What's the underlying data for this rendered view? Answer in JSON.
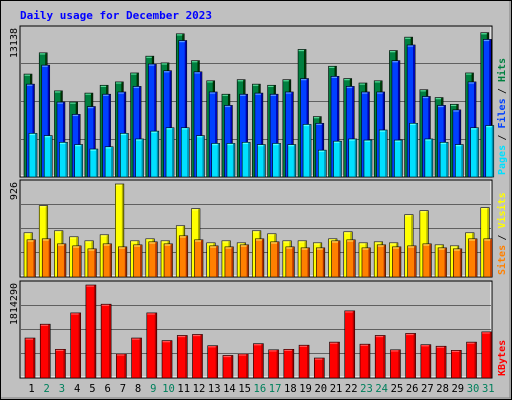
{
  "chart_data": [
    {
      "type": "bar",
      "title": "Daily usage for December 2023",
      "top_label": "13138",
      "side_labels": [
        "Pages",
        "Files",
        "Hits"
      ],
      "categories": [
        "1",
        "2",
        "3",
        "4",
        "5",
        "6",
        "7",
        "8",
        "9",
        "10",
        "11",
        "12",
        "13",
        "14",
        "15",
        "16",
        "17",
        "18",
        "19",
        "20",
        "21",
        "22",
        "23",
        "24",
        "25",
        "26",
        "27",
        "28",
        "29",
        "30",
        "31"
      ],
      "weekend_days": [
        "2",
        "3",
        "9",
        "10",
        "16",
        "17",
        "23",
        "24",
        "30",
        "31"
      ],
      "ylim": [
        0,
        13138
      ],
      "series": [
        {
          "name": "Hits",
          "values": [
            9200,
            11100,
            7700,
            6700,
            7500,
            8200,
            8500,
            9300,
            10800,
            10200,
            12800,
            10400,
            8600,
            7400,
            8700,
            8300,
            8200,
            8700,
            11400,
            5400,
            9900,
            8800,
            8400,
            8600,
            11300,
            12500,
            7800,
            7100,
            6500,
            9300,
            12900
          ]
        },
        {
          "name": "Files",
          "values": [
            8300,
            10000,
            6700,
            5600,
            6300,
            7400,
            7600,
            8100,
            10100,
            9500,
            12200,
            9400,
            7600,
            6400,
            7400,
            7500,
            7400,
            7600,
            8800,
            4800,
            9000,
            8100,
            7600,
            7600,
            10400,
            11800,
            7200,
            6400,
            6000,
            8500,
            12300
          ]
        },
        {
          "name": "Pages",
          "values": [
            3900,
            3700,
            3100,
            2900,
            2500,
            2700,
            3900,
            3400,
            4100,
            4400,
            4400,
            3700,
            3000,
            3000,
            3100,
            2900,
            3000,
            2900,
            4700,
            2400,
            3200,
            3400,
            3300,
            4200,
            3300,
            4800,
            3400,
            3100,
            2900,
            4400,
            4600
          ]
        }
      ]
    },
    {
      "type": "bar",
      "top_label": "926",
      "side_labels": [
        "Sites",
        "Visits"
      ],
      "categories": [
        "1",
        "2",
        "3",
        "4",
        "5",
        "6",
        "7",
        "8",
        "9",
        "10",
        "11",
        "12",
        "13",
        "14",
        "15",
        "16",
        "17",
        "18",
        "19",
        "20",
        "21",
        "22",
        "23",
        "24",
        "25",
        "26",
        "27",
        "28",
        "29",
        "30",
        "31"
      ],
      "ylim": [
        0,
        926
      ],
      "series": [
        {
          "name": "Visits",
          "values": [
            440,
            710,
            460,
            400,
            360,
            420,
            926,
            360,
            380,
            360,
            510,
            680,
            340,
            360,
            340,
            460,
            430,
            360,
            360,
            340,
            380,
            450,
            340,
            350,
            340,
            620,
            660,
            320,
            310,
            440,
            690
          ]
        },
        {
          "name": "Sites",
          "values": [
            370,
            380,
            330,
            310,
            280,
            330,
            300,
            320,
            350,
            330,
            410,
            370,
            310,
            300,
            320,
            380,
            350,
            300,
            290,
            290,
            360,
            370,
            290,
            320,
            300,
            310,
            330,
            290,
            280,
            380,
            380
          ]
        }
      ]
    },
    {
      "type": "bar",
      "top_label": "1814290",
      "side_labels": [
        "KBytes"
      ],
      "categories": [
        "1",
        "2",
        "3",
        "4",
        "5",
        "6",
        "7",
        "8",
        "9",
        "10",
        "11",
        "12",
        "13",
        "14",
        "15",
        "16",
        "17",
        "18",
        "19",
        "20",
        "21",
        "22",
        "23",
        "24",
        "25",
        "26",
        "27",
        "28",
        "29",
        "30",
        "31"
      ],
      "ylim": [
        0,
        1814290
      ],
      "series": [
        {
          "name": "KBytes",
          "values": [
            780000,
            1050000,
            560000,
            1270000,
            1814290,
            1440000,
            470000,
            780000,
            1270000,
            730000,
            830000,
            850000,
            630000,
            440000,
            470000,
            670000,
            550000,
            560000,
            640000,
            390000,
            700000,
            1310000,
            660000,
            830000,
            550000,
            870000,
            650000,
            620000,
            540000,
            700000,
            900000
          ]
        }
      ]
    }
  ],
  "colors": {
    "hits": "#008040",
    "files": "#0040ff",
    "pages": "#00e0ff",
    "visits": "#ffff00",
    "sites": "#ff8000",
    "kbytes": "#ff0000",
    "title": "#0000ff",
    "weekday_label": "#000000",
    "weekend_label": "#00805c"
  }
}
